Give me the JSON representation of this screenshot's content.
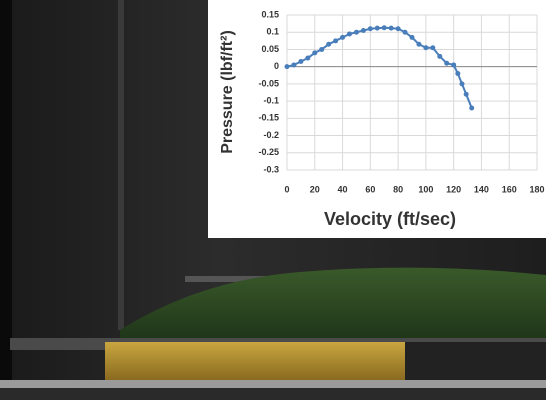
{
  "chart_data": {
    "type": "line",
    "x_label": "Velocity (ft/sec)",
    "y_label": "Pressure (lbf/ft²)",
    "x": [
      0,
      5,
      10,
      15,
      20,
      25,
      30,
      35,
      40,
      45,
      50,
      55,
      60,
      65,
      70,
      75,
      80,
      85,
      90,
      95,
      100,
      105,
      110,
      115,
      120,
      123,
      126,
      129,
      133
    ],
    "values": [
      0,
      0.005,
      0.015,
      0.025,
      0.04,
      0.05,
      0.065,
      0.075,
      0.085,
      0.095,
      0.1,
      0.105,
      0.11,
      0.112,
      0.113,
      0.112,
      0.11,
      0.1,
      0.085,
      0.065,
      0.055,
      0.055,
      0.03,
      0.01,
      0.005,
      -0.02,
      -0.05,
      -0.08,
      -0.12
    ],
    "color": "#4a7ebb",
    "xlim": [
      0,
      180
    ],
    "xticks": [
      0,
      20,
      40,
      60,
      80,
      100,
      120,
      140,
      160,
      180
    ],
    "ylim": [
      -0.3,
      0.15
    ],
    "yticks": [
      0.15,
      0.1,
      0.05,
      0,
      -0.05,
      -0.1,
      -0.15,
      -0.2,
      -0.25,
      -0.3
    ],
    "grid": true
  }
}
